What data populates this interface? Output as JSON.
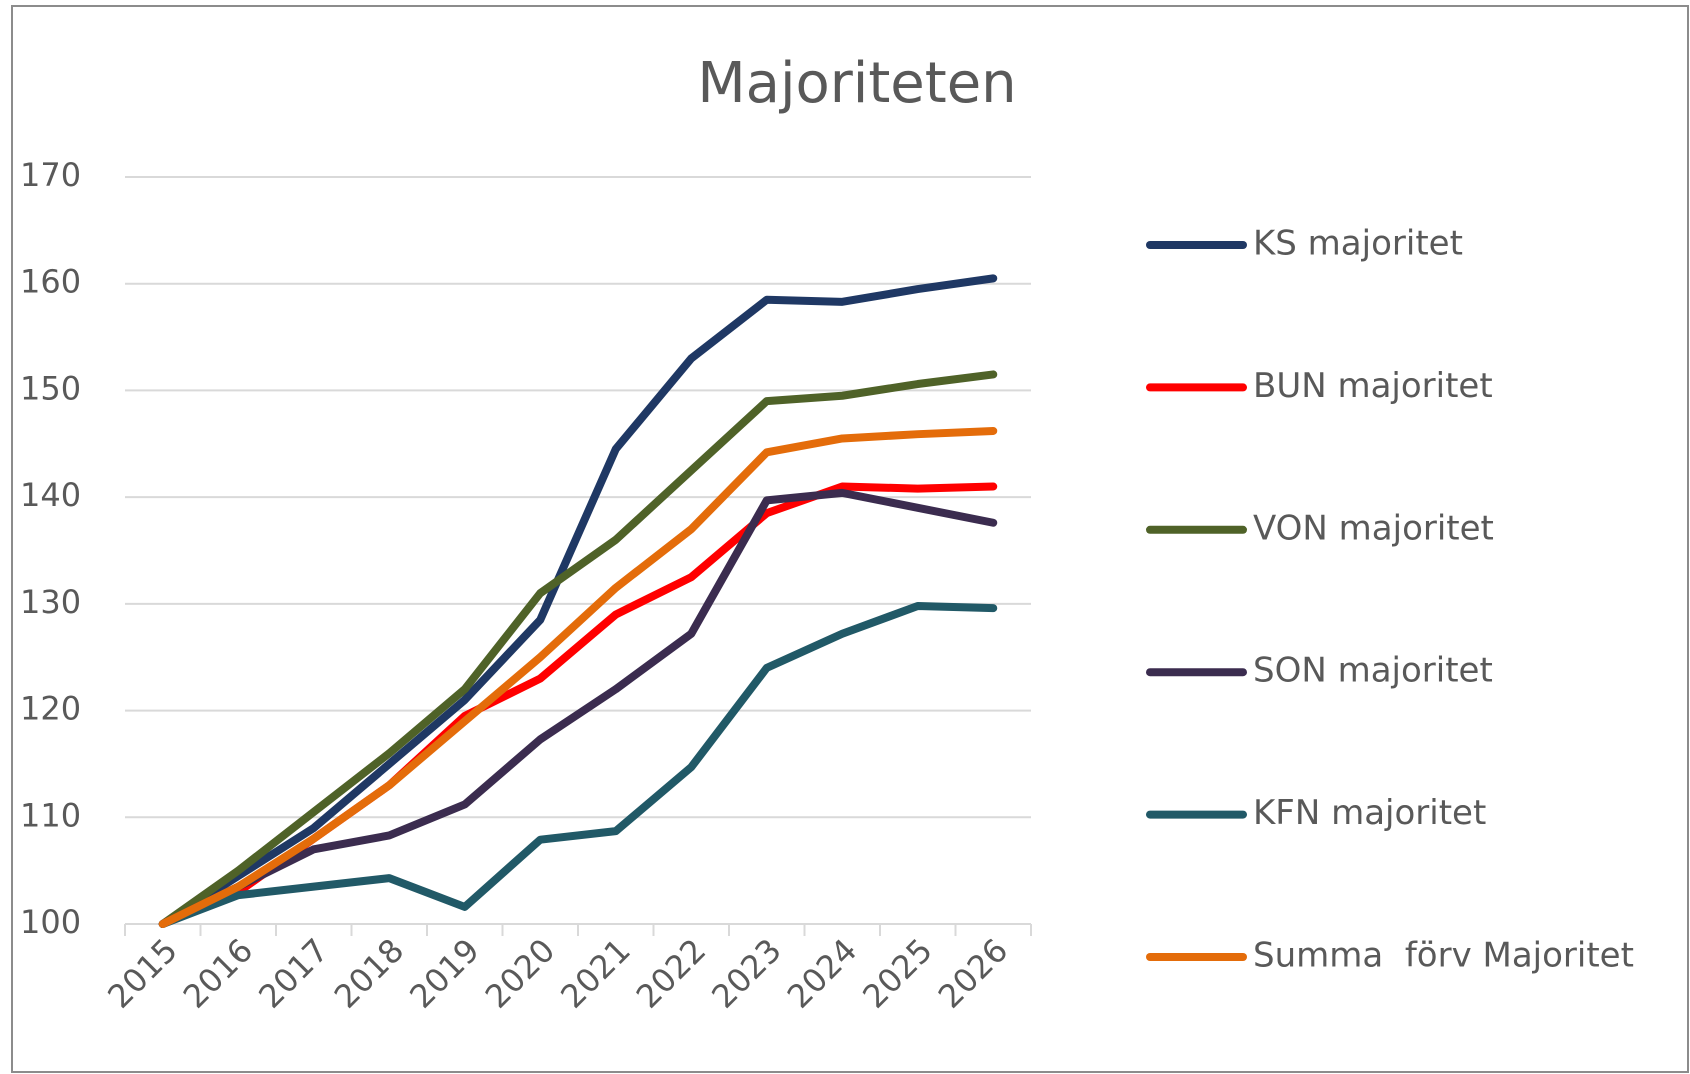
{
  "chart_data": {
    "type": "line",
    "title": "Majoriteten",
    "categories": [
      "2015",
      "2016",
      "2017",
      "2018",
      "2019",
      "2020",
      "2021",
      "2022",
      "2023",
      "2024",
      "2025",
      "2026"
    ],
    "series": [
      {
        "name": "KS majoritet",
        "color": "#1f3864",
        "values": [
          100,
          104.5,
          109,
          115,
          121,
          128.5,
          144.5,
          153,
          158.5,
          158.3,
          159.5,
          160.5
        ]
      },
      {
        "name": "BUN majoritet",
        "color": "#ff0000",
        "values": [
          100,
          103,
          108,
          113,
          119.5,
          123,
          129,
          132.5,
          138.5,
          141,
          140.8,
          141
        ]
      },
      {
        "name": "VON majoritet",
        "color": "#4f6228",
        "values": [
          100,
          105,
          110.5,
          116,
          122,
          131,
          136,
          142.5,
          149,
          149.5,
          150.6,
          151.5
        ]
      },
      {
        "name": "SON majoritet",
        "color": "#3b2c4f",
        "values": [
          100,
          103.5,
          107,
          108.3,
          111.2,
          117.3,
          122,
          127.2,
          139.7,
          140.4,
          139,
          137.6
        ]
      },
      {
        "name": "KFN majoritet",
        "color": "#215967",
        "values": [
          100,
          102.7,
          103.5,
          104.3,
          101.6,
          107.9,
          108.7,
          114.7,
          124,
          127.2,
          129.8,
          129.6
        ]
      },
      {
        "name": "Summa  förv Majoritet",
        "color": "#e46c0a",
        "values": [
          100,
          103.5,
          108,
          113,
          119,
          125,
          131.5,
          137,
          144.2,
          145.5,
          145.9,
          146.2
        ]
      }
    ],
    "ylim": [
      100,
      170
    ],
    "yticks": [
      100,
      110,
      120,
      130,
      140,
      150,
      160,
      170
    ],
    "grid": true
  }
}
